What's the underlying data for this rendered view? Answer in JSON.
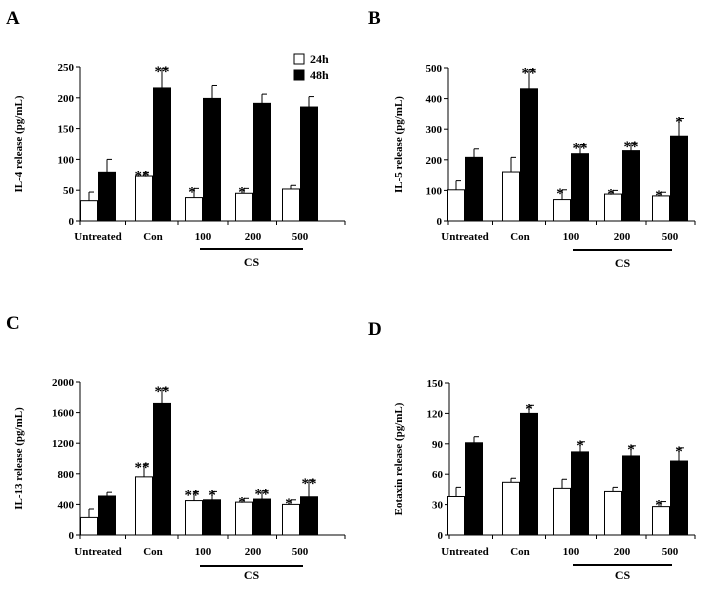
{
  "legend": {
    "series_24h": "24h",
    "series_48h": "48h"
  },
  "colors": {
    "fill_24h": "#ffffff",
    "fill_48h": "#000000",
    "stroke": "#000000"
  },
  "chart_data": [
    {
      "panel": "A",
      "type": "bar",
      "ylabel": "IL-4 release (pg/mL)",
      "ylim": [
        0,
        250
      ],
      "yticks": [
        0,
        50,
        100,
        150,
        200,
        250
      ],
      "categories": [
        "Untreated",
        "Con",
        "100",
        "200",
        "500"
      ],
      "group_label": "CS",
      "series": [
        {
          "name": "24h",
          "values": [
            33,
            73,
            38,
            45,
            52
          ],
          "errors": [
            14,
            6,
            15,
            8,
            6
          ],
          "stars": [
            "",
            "**",
            "*",
            "*",
            ""
          ]
        },
        {
          "name": "48h",
          "values": [
            79,
            216,
            199,
            191,
            185
          ],
          "errors": [
            21,
            32,
            21,
            15,
            17
          ],
          "stars": [
            "",
            "**",
            "",
            "",
            ""
          ]
        }
      ]
    },
    {
      "panel": "B",
      "type": "bar",
      "ylabel": "IL-5 release (pg/mL)",
      "ylim": [
        0,
        500
      ],
      "yticks": [
        0,
        100,
        200,
        300,
        400,
        500
      ],
      "categories": [
        "Untreated",
        "Con",
        "100",
        "200",
        "500"
      ],
      "group_label": "CS",
      "series": [
        {
          "name": "24h",
          "values": [
            102,
            160,
            70,
            88,
            82
          ],
          "errors": [
            30,
            48,
            32,
            12,
            12
          ],
          "stars": [
            "",
            "",
            "*",
            "*",
            "*"
          ]
        },
        {
          "name": "48h",
          "values": [
            208,
            432,
            220,
            230,
            277
          ],
          "errors": [
            28,
            63,
            30,
            25,
            58
          ],
          "stars": [
            "",
            "**",
            "**",
            "**",
            "*"
          ]
        }
      ]
    },
    {
      "panel": "C",
      "type": "bar",
      "ylabel": "IL-13 release (pg/mL)",
      "ylim": [
        0,
        2000
      ],
      "yticks": [
        0,
        400,
        800,
        1200,
        1600,
        2000
      ],
      "categories": [
        "Untreated",
        "Con",
        "100",
        "200",
        "500"
      ],
      "group_label": "CS",
      "series": [
        {
          "name": "24h",
          "values": [
            230,
            760,
            450,
            430,
            400
          ],
          "errors": [
            110,
            170,
            120,
            50,
            60
          ],
          "stars": [
            "",
            "**",
            "**",
            "*",
            "*"
          ]
        },
        {
          "name": "48h",
          "values": [
            510,
            1720,
            460,
            470,
            500
          ],
          "errors": [
            50,
            200,
            110,
            110,
            220
          ],
          "stars": [
            "",
            "**",
            "*",
            "**",
            "**"
          ]
        }
      ]
    },
    {
      "panel": "D",
      "type": "bar",
      "ylabel": "Eotaxin release (pg/mL)",
      "ylim": [
        0,
        150
      ],
      "yticks": [
        0,
        30,
        60,
        90,
        120,
        150
      ],
      "categories": [
        "Untreated",
        "Con",
        "100",
        "200",
        "500"
      ],
      "group_label": "CS",
      "series": [
        {
          "name": "24h",
          "values": [
            38,
            52,
            46,
            43,
            28
          ],
          "errors": [
            9,
            4,
            9,
            4,
            5
          ],
          "stars": [
            "",
            "",
            "",
            "",
            "*"
          ]
        },
        {
          "name": "48h",
          "values": [
            91,
            120,
            82,
            78,
            73
          ],
          "errors": [
            6,
            8,
            10,
            10,
            13
          ],
          "stars": [
            "",
            "*",
            "*",
            "*",
            "*"
          ]
        }
      ]
    }
  ]
}
